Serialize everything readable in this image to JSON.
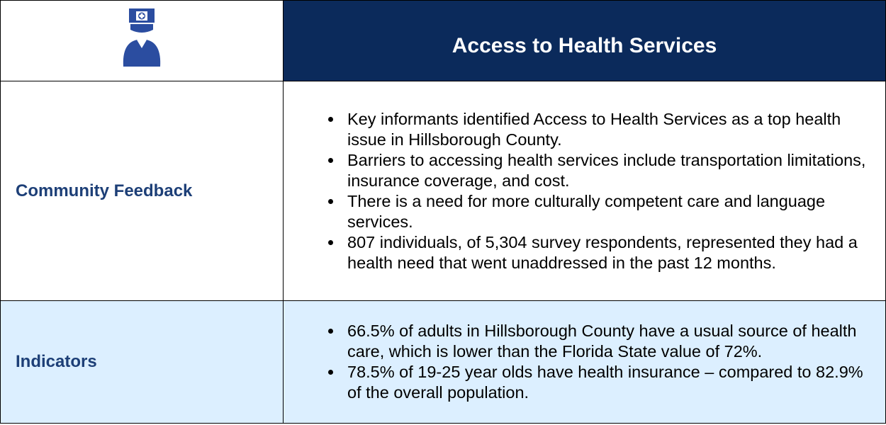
{
  "header": {
    "title": "Access to Health Services"
  },
  "rows": [
    {
      "label": "Community Feedback",
      "bullets": [
        "Key informants identified Access to Health Services as a top health issue in Hillsborough County.",
        "Barriers to accessing health services include transportation limitations, insurance coverage, and cost.",
        "There is a need for more culturally competent care and language services.",
        "807 individuals, of 5,304 survey respondents, represented they had a health need that went unaddressed in the past 12 months."
      ]
    },
    {
      "label": "Indicators",
      "bullets": [
        "66.5% of adults in Hillsborough County have a usual source of health care, which is lower than the Florida State value of 72%.",
        "78.5% of 19-25 year olds have health insurance – compared to 82.9% of the overall population."
      ]
    }
  ]
}
